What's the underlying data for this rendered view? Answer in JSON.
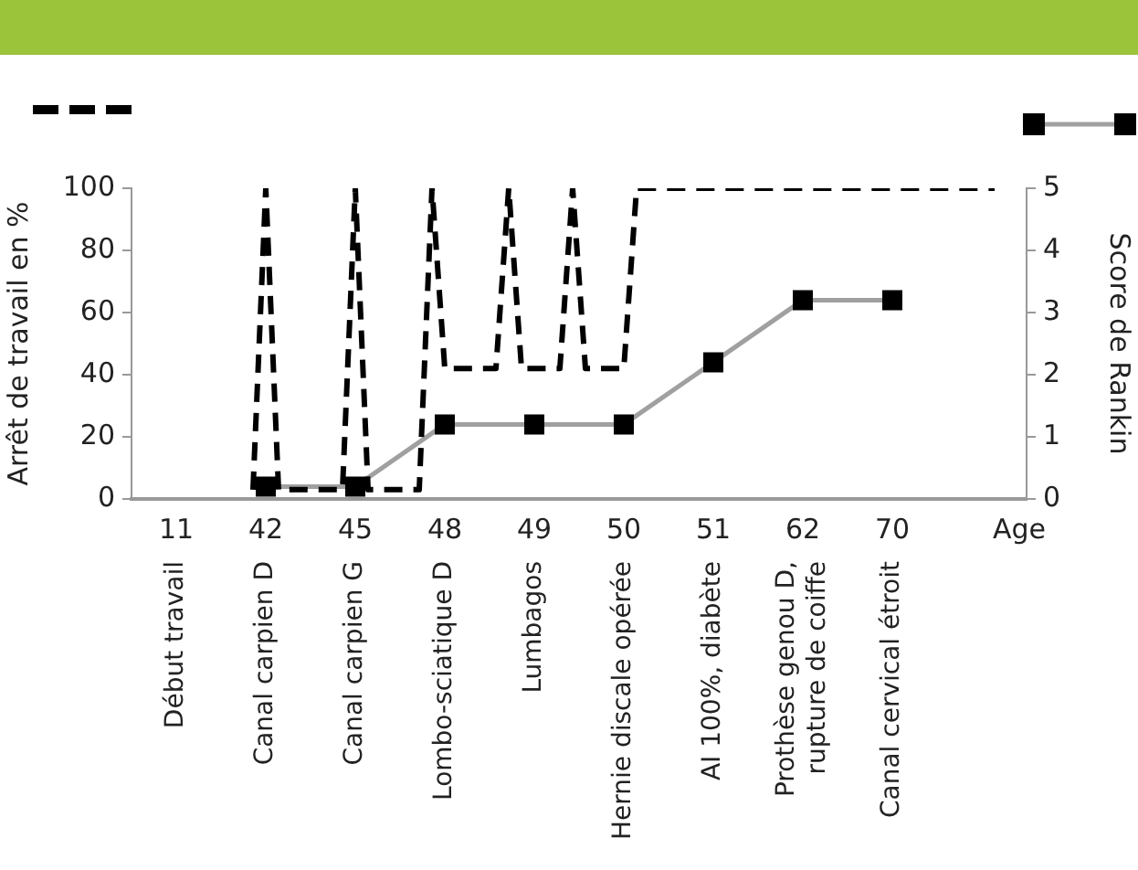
{
  "chart_data": {
    "type": "line",
    "xlabel": "Age",
    "ylabel": "Arrêt de travail en %",
    "y2label": "Score de Rankin",
    "categories": [
      null,
      null,
      null,
      "11\nDébut travail",
      null,
      null,
      null,
      null,
      null,
      null,
      "42\nCanal carpien D",
      null,
      null,
      null,
      null,
      null,
      null,
      "45\nCanal carpien G",
      null,
      null,
      null,
      null,
      null,
      null,
      "48\nLombo-sciatique D",
      null,
      null,
      null,
      null,
      null,
      null,
      "49\nLumbagos",
      null,
      null,
      null,
      null,
      null,
      null,
      "50\nHernie discale opérée",
      null,
      null,
      null,
      null,
      null,
      null,
      "51\nAI 100%, diabète",
      null,
      null,
      null,
      null,
      null,
      null,
      "62\nProthèse genou D,\nrupture de coiffe",
      null,
      null,
      null,
      null,
      null,
      null,
      "70\nCanal cervical étroit",
      null,
      null,
      null,
      null,
      null,
      null,
      null,
      null,
      null,
      null
    ],
    "series": [
      {
        "color": "#000000",
        "line_style": "dashed",
        "marker": "none",
        "values": [
          null,
          null,
          null,
          null,
          null,
          null,
          null,
          null,
          null,
          3,
          100,
          3,
          3,
          3,
          3,
          3,
          3,
          100,
          3,
          3,
          3,
          3,
          3,
          100,
          42,
          42,
          42,
          42,
          42,
          100,
          42,
          42,
          42,
          42,
          100,
          42,
          42,
          42,
          42,
          100,
          100,
          100,
          100,
          100,
          100,
          100,
          100,
          100,
          100,
          100,
          100,
          100,
          100,
          100,
          100,
          100,
          100,
          100,
          100,
          100,
          100,
          100,
          100,
          100,
          100,
          100,
          100,
          100,
          null,
          null
        ]
      },
      {
        "color": "#a0a0a0",
        "line_style": "solid",
        "marker": "square",
        "axis": "y2",
        "values": [
          null,
          null,
          null,
          null,
          null,
          null,
          null,
          null,
          null,
          null,
          0.2,
          null,
          null,
          null,
          null,
          null,
          null,
          0.2,
          null,
          null,
          null,
          null,
          null,
          null,
          1.2,
          null,
          null,
          null,
          null,
          null,
          null,
          1.2,
          null,
          null,
          null,
          null,
          null,
          null,
          1.2,
          null,
          null,
          null,
          null,
          null,
          null,
          2.2,
          null,
          null,
          null,
          null,
          null,
          null,
          3.2,
          null,
          null,
          null,
          null,
          null,
          null,
          3.2,
          null,
          null,
          null,
          null,
          null,
          null,
          null,
          null,
          null,
          null
        ]
      }
    ],
    "ylim": [
      0,
      100
    ],
    "yticks": [
      0,
      20,
      40,
      60,
      80,
      100
    ],
    "y2lim": [
      0,
      5
    ],
    "y2ticks": [
      0,
      1,
      2,
      3,
      4,
      5
    ],
    "grid": false,
    "legend": false
  }
}
